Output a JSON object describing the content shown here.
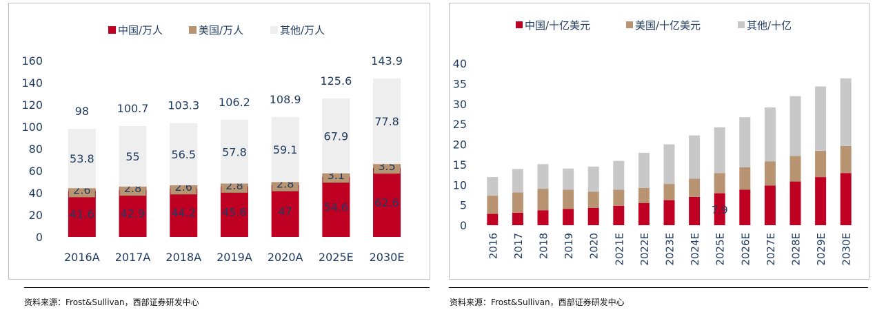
{
  "colors": {
    "china": "#c00022",
    "usa": "#b89472",
    "other_left": "#eeeeee",
    "other_right": "#c8c8c8",
    "text": "#1f3a5f"
  },
  "chart_data": [
    {
      "type": "bar",
      "stacked": true,
      "title": "",
      "legend_position": "top",
      "categories": [
        "2016A",
        "2017A",
        "2018A",
        "2019A",
        "2020A",
        "2025E",
        "2030E"
      ],
      "series": [
        {
          "name": "中国/万人",
          "values": [
            41.6,
            42.9,
            44.2,
            45.6,
            47,
            54.6,
            62.6
          ],
          "labels": [
            "41.6",
            "42.9",
            "44.2",
            "45.6",
            "47",
            "54.6",
            "62.6"
          ]
        },
        {
          "name": "美国/万人",
          "values": [
            2.6,
            2.8,
            2.6,
            2.8,
            2.8,
            3.1,
            3.5
          ],
          "labels": [
            "2.6",
            "2.8",
            "2.6",
            "2.8",
            "2.8",
            "3.1",
            "3.5"
          ]
        },
        {
          "name": "其他/万人",
          "values": [
            53.8,
            55,
            56.5,
            57.8,
            59.1,
            67.9,
            77.8
          ],
          "labels": [
            "53.8",
            "55",
            "56.5",
            "57.8",
            "59.1",
            "67.9",
            "77.8"
          ]
        }
      ],
      "totals": [
        "98",
        "100.7",
        "103.3",
        "106.2",
        "108.9",
        "125.6",
        "143.9"
      ],
      "y_ticks": [
        "0",
        "20",
        "40",
        "60",
        "80",
        "100",
        "120",
        "140",
        "160"
      ],
      "ylim": [
        0,
        160
      ],
      "xlabel": "",
      "ylabel": "",
      "grid": false
    },
    {
      "type": "bar",
      "stacked": true,
      "title": "",
      "legend_position": "top",
      "categories": [
        "2016",
        "2017",
        "2018",
        "2019",
        "2020",
        "2021E",
        "2022E",
        "2023E",
        "2024E",
        "2025E",
        "2026E",
        "2027E",
        "2028E",
        "2029E",
        "2030E"
      ],
      "series": [
        {
          "name": "中国/十亿美元",
          "values": [
            2.8,
            3.1,
            3.7,
            4.0,
            4.3,
            4.8,
            5.5,
            6.2,
            7.0,
            7.9,
            8.8,
            9.8,
            10.8,
            11.9,
            12.9
          ]
        },
        {
          "name": "美国/十亿美元",
          "values": [
            4.5,
            5.0,
            5.3,
            4.8,
            4.0,
            4.0,
            3.7,
            4.0,
            4.5,
            5.0,
            5.5,
            6.0,
            6.3,
            6.5,
            6.7
          ]
        },
        {
          "name": "其他/十亿",
          "values": [
            4.6,
            5.8,
            6.1,
            5.2,
            6.2,
            7.1,
            8.7,
            9.8,
            10.7,
            11.3,
            12.4,
            13.3,
            14.8,
            15.9,
            16.7
          ]
        }
      ],
      "annotation": "7.9",
      "y_ticks": [
        "0",
        "5",
        "10",
        "15",
        "20",
        "25",
        "30",
        "35",
        "40"
      ],
      "ylim": [
        0,
        40
      ],
      "xlabel": "",
      "ylabel": "",
      "grid": false
    }
  ],
  "source_left": "资料来源：Frost&Sullivan，西部证券研发中心",
  "source_right": "资料来源：Frost&Sullivan，西部证券研发中心"
}
